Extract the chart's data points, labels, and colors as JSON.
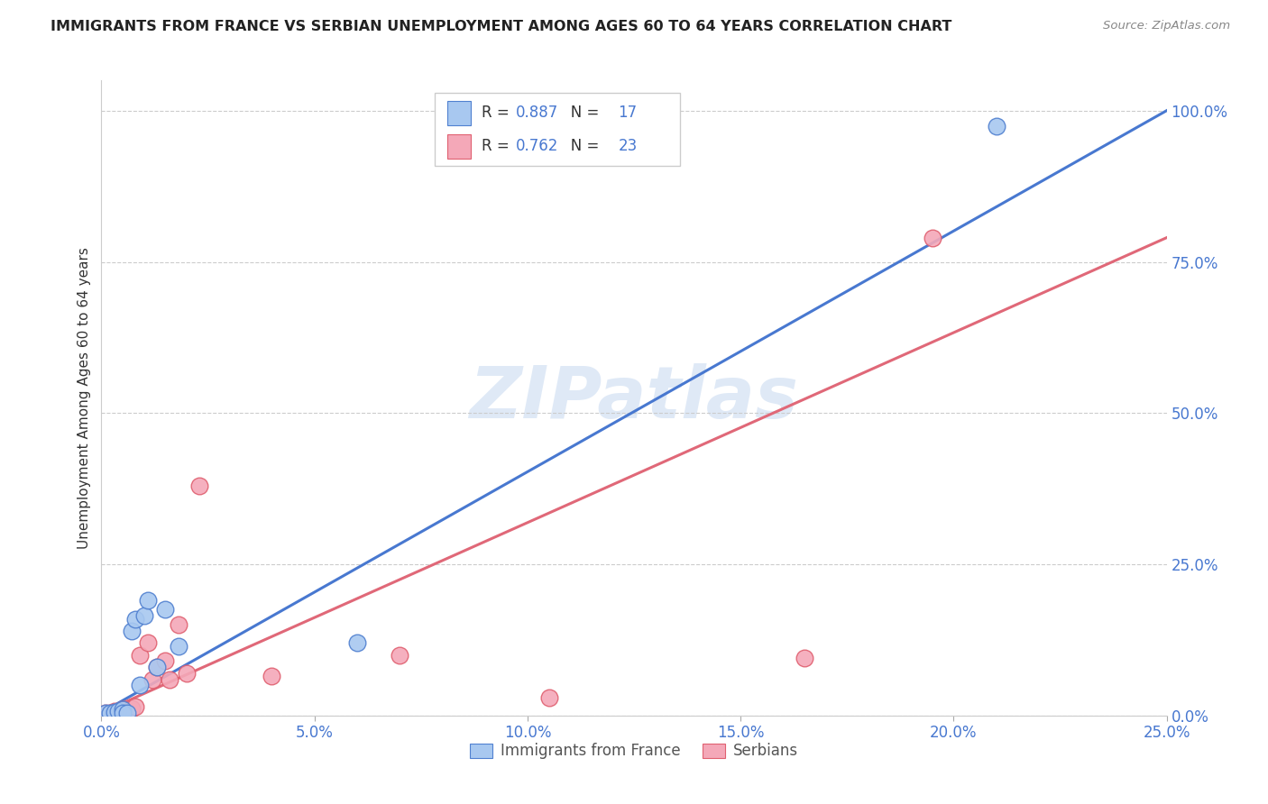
{
  "title": "IMMIGRANTS FROM FRANCE VS SERBIAN UNEMPLOYMENT AMONG AGES 60 TO 64 YEARS CORRELATION CHART",
  "source": "Source: ZipAtlas.com",
  "xlabel_ticks": [
    "0.0%",
    "5.0%",
    "10.0%",
    "15.0%",
    "20.0%",
    "25.0%"
  ],
  "ylabel_ticks": [
    "0.0%",
    "25.0%",
    "50.0%",
    "75.0%",
    "100.0%"
  ],
  "ylabel_label": "Unemployment Among Ages 60 to 64 years",
  "legend_label1": "Immigrants from France",
  "legend_label2": "Serbians",
  "r1": "0.887",
  "n1": "17",
  "r2": "0.762",
  "n2": "23",
  "color_blue_fill": "#A8C8F0",
  "color_pink_fill": "#F4A8B8",
  "color_blue_edge": "#5080D0",
  "color_pink_edge": "#E06070",
  "color_blue_line": "#4878D0",
  "color_pink_line": "#E06878",
  "color_text_blue": "#4878D0",
  "color_text_dark": "#333333",
  "watermark": "ZIPatlas",
  "blue_points_x": [
    0.001,
    0.002,
    0.003,
    0.004,
    0.005,
    0.005,
    0.006,
    0.007,
    0.008,
    0.009,
    0.01,
    0.011,
    0.013,
    0.015,
    0.018,
    0.06,
    0.21
  ],
  "blue_points_y": [
    0.005,
    0.005,
    0.006,
    0.008,
    0.01,
    0.005,
    0.005,
    0.14,
    0.16,
    0.05,
    0.165,
    0.19,
    0.08,
    0.175,
    0.115,
    0.12,
    0.975
  ],
  "pink_points_x": [
    0.001,
    0.002,
    0.003,
    0.003,
    0.004,
    0.005,
    0.006,
    0.007,
    0.008,
    0.009,
    0.011,
    0.012,
    0.013,
    0.015,
    0.016,
    0.018,
    0.02,
    0.023,
    0.04,
    0.07,
    0.105,
    0.165,
    0.195
  ],
  "pink_points_y": [
    0.005,
    0.005,
    0.005,
    0.008,
    0.005,
    0.01,
    0.005,
    0.012,
    0.015,
    0.1,
    0.12,
    0.06,
    0.08,
    0.09,
    0.06,
    0.15,
    0.07,
    0.38,
    0.065,
    0.1,
    0.03,
    0.095,
    0.79
  ],
  "xlim": [
    0.0,
    0.25
  ],
  "ylim": [
    0.0,
    1.05
  ],
  "blue_line_x": [
    0.0,
    0.25
  ],
  "blue_line_y": [
    0.005,
    1.0
  ],
  "pink_line_x": [
    0.0,
    0.25
  ],
  "pink_line_y": [
    0.005,
    0.79
  ]
}
